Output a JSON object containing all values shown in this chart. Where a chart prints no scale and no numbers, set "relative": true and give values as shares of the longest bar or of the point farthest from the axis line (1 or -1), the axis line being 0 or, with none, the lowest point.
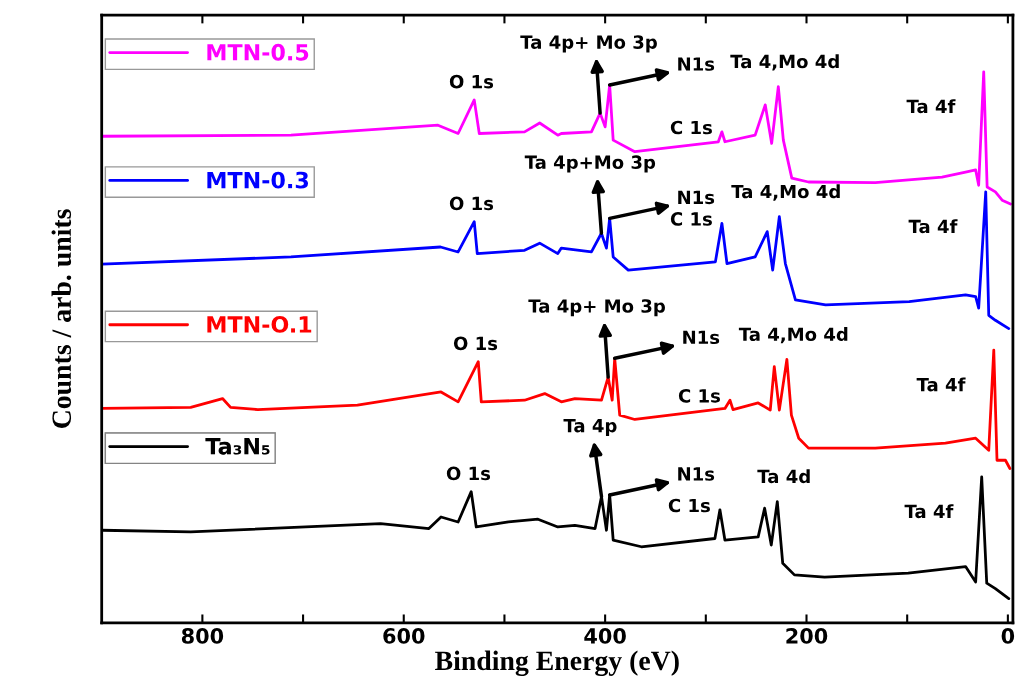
{
  "chart_data": {
    "type": "line",
    "relative": true,
    "xlabel": "Binding Energy (eV)",
    "ylabel": "Counts / arb. units",
    "xlim": [
      900,
      -5
    ],
    "xticks": [
      800,
      {
        "value": 700,
        "label": null
      },
      600,
      {
        "value": 500,
        "label": null
      },
      400,
      {
        "value": 300,
        "label": null
      },
      200,
      {
        "value": 100,
        "label": null
      },
      0
    ],
    "grid": false,
    "legend": "left",
    "tick_labels": "x",
    "series": [
      {
        "name": "MTN-0.5",
        "color": "#ff00ff",
        "x": [
          900,
          712,
          566,
          546,
          530,
          525,
          480,
          465,
          447,
          443.5,
          413.6,
          405,
          400,
          395.5,
          392,
          370.5,
          287.6,
          284,
          281,
          251,
          241,
          234.6,
          228,
          223,
          214.6,
          198,
          131.7,
          65.4,
          42,
          32,
          29,
          24,
          20.6,
          12.4,
          5.7,
          -2.6
        ],
        "values": [
          0.883,
          0.885,
          0.903,
          0.888,
          0.949,
          0.888,
          0.891,
          0.907,
          0.885,
          0.888,
          0.891,
          0.925,
          0.9,
          0.976,
          0.876,
          0.855,
          0.873,
          0.891,
          0.873,
          0.885,
          0.94,
          0.87,
          0.973,
          0.876,
          0.807,
          0.8,
          0.799,
          0.809,
          0.818,
          0.822,
          0.794,
          1.0,
          0.791,
          0.782,
          0.767,
          0.76
        ]
      },
      {
        "name": "MTN-0.3",
        "color": "#0000ff",
        "x": [
          900,
          712,
          563.5,
          546,
          530,
          527,
          480,
          465,
          447,
          443.5,
          413.6,
          403.7,
          398.7,
          395.5,
          392,
          377,
          290.5,
          284,
          279,
          251,
          239,
          233.6,
          227,
          221,
          211,
          181,
          98,
          42,
          32,
          29,
          22,
          19,
          12.4,
          -0.9
        ],
        "values": [
          0.651,
          0.664,
          0.682,
          0.673,
          0.728,
          0.67,
          0.676,
          0.689,
          0.67,
          0.68,
          0.673,
          0.707,
          0.68,
          0.734,
          0.664,
          0.64,
          0.655,
          0.725,
          0.652,
          0.664,
          0.71,
          0.64,
          0.737,
          0.652,
          0.586,
          0.577,
          0.583,
          0.595,
          0.592,
          0.571,
          0.782,
          0.558,
          0.549,
          0.534
        ]
      },
      {
        "name": "MTN-O.1",
        "color": "#ff0000",
        "x": [
          900,
          811.6,
          780,
          772,
          745,
          646,
          563,
          546,
          526,
          523,
          480,
          460,
          443.5,
          430,
          403.6,
          397,
          393,
          390.5,
          385.5,
          370.5,
          281,
          276,
          273,
          248,
          236,
          232,
          227,
          219.5,
          215,
          207.7,
          198,
          131.7,
          62,
          32,
          19,
          14,
          10.8,
          2.4,
          -2
        ],
        "values": [
          0.389,
          0.391,
          0.407,
          0.391,
          0.387,
          0.395,
          0.419,
          0.401,
          0.474,
          0.401,
          0.404,
          0.416,
          0.401,
          0.407,
          0.404,
          0.446,
          0.404,
          0.48,
          0.377,
          0.369,
          0.389,
          0.404,
          0.387,
          0.399,
          0.386,
          0.465,
          0.386,
          0.478,
          0.377,
          0.335,
          0.317,
          0.317,
          0.326,
          0.335,
          0.313,
          0.495,
          0.295,
          0.295,
          0.28
        ]
      },
      {
        "name": "Ta₃N₅",
        "color": "#000000",
        "x": [
          900,
          811.6,
          623,
          575,
          563,
          546,
          533,
          528,
          496,
          466.7,
          447,
          430,
          410,
          403.6,
          398.7,
          395.5,
          392,
          364,
          291,
          286,
          281,
          248,
          241.6,
          235,
          229,
          223.6,
          212,
          182,
          99,
          42,
          32,
          26,
          21,
          12.4,
          -0.9
        ],
        "values": [
          0.168,
          0.165,
          0.18,
          0.171,
          0.192,
          0.183,
          0.238,
          0.174,
          0.183,
          0.188,
          0.174,
          0.177,
          0.171,
          0.229,
          0.168,
          0.232,
          0.15,
          0.138,
          0.153,
          0.205,
          0.15,
          0.156,
          0.208,
          0.141,
          0.22,
          0.108,
          0.087,
          0.083,
          0.09,
          0.102,
          0.074,
          0.265,
          0.072,
          0.062,
          0.044
        ]
      }
    ],
    "annotations": [
      {
        "text": "O 1s",
        "x": 530,
        "y": 0.949
      },
      {
        "text": "Ta 4p+ Mo 3p",
        "x": 405,
        "y": 0.925
      },
      {
        "text": "N1s",
        "x": 395.5,
        "y": 0.976
      },
      {
        "text": "Ta 4,Mo 4d",
        "x": 228,
        "y": 0.973
      },
      {
        "text": "C 1s",
        "x": 284,
        "y": 0.891
      },
      {
        "text": "Ta 4f",
        "x": 24,
        "y": 1.0
      },
      {
        "text": "O 1s",
        "x": 530,
        "y": 0.728
      },
      {
        "text": "Ta 4p+Mo 3p",
        "x": 403.7,
        "y": 0.707
      },
      {
        "text": "N1s",
        "x": 395.5,
        "y": 0.734
      },
      {
        "text": "Ta 4,Mo 4d",
        "x": 227,
        "y": 0.737
      },
      {
        "text": "C 1s",
        "x": 284,
        "y": 0.725
      },
      {
        "text": "Ta 4f",
        "x": 22,
        "y": 0.782
      },
      {
        "text": "O 1s",
        "x": 526,
        "y": 0.474
      },
      {
        "text": "Ta 4p+ Mo 3p",
        "x": 397,
        "y": 0.446
      },
      {
        "text": "N1s",
        "x": 390.5,
        "y": 0.48
      },
      {
        "text": "Ta 4,Mo 4d",
        "x": 219.5,
        "y": 0.478
      },
      {
        "text": "C 1s",
        "x": 276,
        "y": 0.404
      },
      {
        "text": "Ta 4f",
        "x": 14,
        "y": 0.495
      },
      {
        "text": "O 1s",
        "x": 533,
        "y": 0.238
      },
      {
        "text": "Ta 4p",
        "x": 403.6,
        "y": 0.229
      },
      {
        "text": "N1s",
        "x": 395.5,
        "y": 0.232
      },
      {
        "text": "Ta 4d",
        "x": 229,
        "y": 0.22
      },
      {
        "text": "C 1s",
        "x": 286,
        "y": 0.205
      },
      {
        "text": "Ta 4f",
        "x": 26,
        "y": 0.265
      }
    ]
  }
}
